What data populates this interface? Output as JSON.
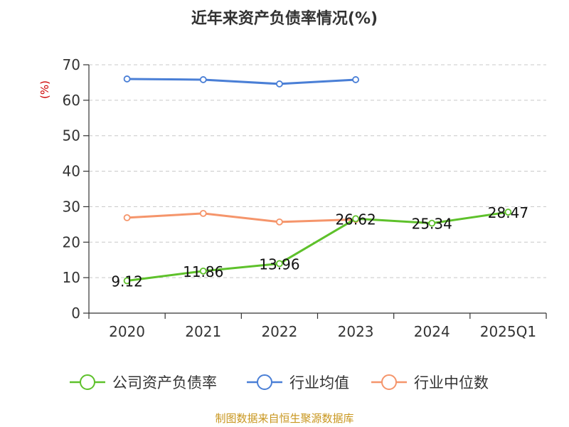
{
  "chart_data": {
    "type": "line",
    "title": "近年来资产负债率情况(%)",
    "ylabel": "(%)",
    "categories": [
      "2020",
      "2021",
      "2022",
      "2023",
      "2024",
      "2025Q1"
    ],
    "ylim": [
      0,
      70
    ],
    "yticks": [
      0,
      10,
      20,
      30,
      40,
      50,
      60,
      70
    ],
    "grid": true,
    "legend_position": "bottom",
    "series": [
      {
        "name": "公司资产负债率",
        "color": "#5ec12b",
        "values": [
          9.12,
          11.86,
          13.96,
          26.62,
          25.34,
          28.47
        ],
        "labels": [
          "9.12",
          "11.86",
          "13.96",
          "26.62",
          "25.34",
          "28.47"
        ]
      },
      {
        "name": "行业均值",
        "color": "#4a7fd6",
        "values": [
          66.0,
          65.8,
          64.6,
          65.8,
          null,
          null
        ]
      },
      {
        "name": "行业中位数",
        "color": "#f5956b",
        "values": [
          26.9,
          28.1,
          25.7,
          26.4,
          null,
          null
        ]
      }
    ],
    "source": "制图数据来自恒生聚源数据库"
  }
}
